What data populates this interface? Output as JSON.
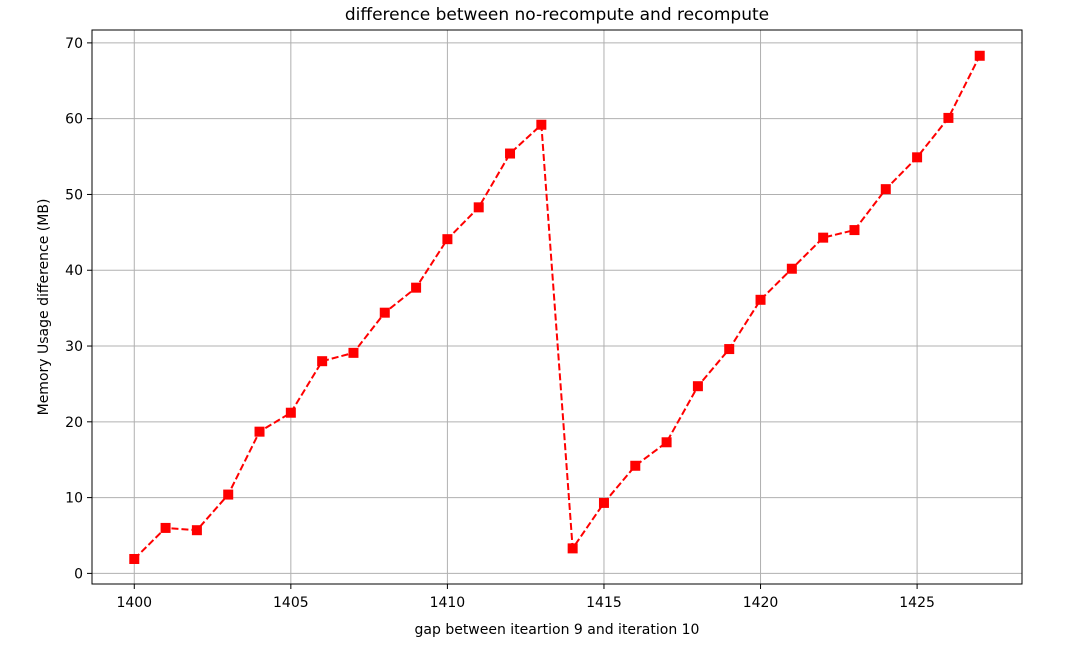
{
  "chart_data": {
    "type": "line",
    "title": "difference between no-recompute and recompute",
    "xlabel": "gap between iteartion 9 and iteration 10",
    "ylabel": "Memory Usage difference (MB)",
    "xlim": [
      1398.65,
      1428.35
    ],
    "ylim": [
      -1.4,
      71.7
    ],
    "xticks": [
      1400,
      1405,
      1410,
      1415,
      1420,
      1425
    ],
    "yticks": [
      0,
      10,
      20,
      30,
      40,
      50,
      60,
      70
    ],
    "grid": true,
    "series": [
      {
        "color": "#ff0000",
        "line_style": "dashed",
        "marker": "square",
        "x": [
          1400,
          1401,
          1402,
          1403,
          1404,
          1405,
          1406,
          1407,
          1408,
          1409,
          1410,
          1411,
          1412,
          1413,
          1414,
          1415,
          1416,
          1417,
          1418,
          1419,
          1420,
          1421,
          1422,
          1423,
          1424,
          1425,
          1426,
          1427
        ],
        "values": [
          1.9,
          6.0,
          5.7,
          10.4,
          18.7,
          21.2,
          28.0,
          29.1,
          34.4,
          37.7,
          44.1,
          48.3,
          55.4,
          59.2,
          3.3,
          9.3,
          14.2,
          17.3,
          24.7,
          29.6,
          36.1,
          40.2,
          44.3,
          45.3,
          50.7,
          54.9,
          60.1,
          68.3
        ]
      }
    ]
  }
}
